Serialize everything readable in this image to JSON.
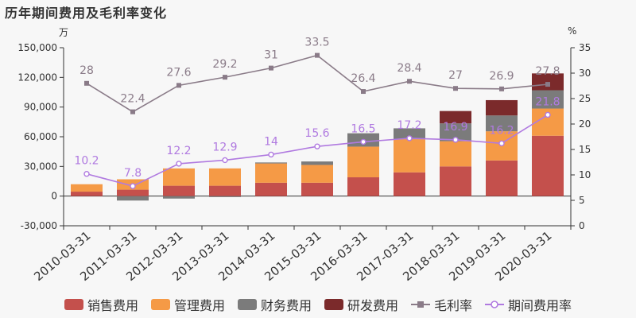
{
  "title": "历年期间费用及毛利率变化",
  "left_unit": "万",
  "right_unit": "%",
  "chart_data": {
    "type": "bar",
    "stacked": true,
    "categories": [
      "2010-03-31",
      "2011-03-31",
      "2012-03-31",
      "2013-03-31",
      "2014-03-31",
      "2015-03-31",
      "2016-03-31",
      "2017-03-31",
      "2018-03-31",
      "2019-03-31",
      "2020-03-31"
    ],
    "ylim": [
      -30000,
      150000
    ],
    "y_ticks": [
      "-30,000",
      "0",
      "30,000",
      "60,000",
      "90,000",
      "120,000",
      "150,000"
    ],
    "y2lim": [
      0,
      35
    ],
    "y2_ticks": [
      "0",
      "5",
      "10",
      "15",
      "20",
      "25",
      "30",
      "35"
    ],
    "series": [
      {
        "name": "销售费用",
        "color": "#c4504c",
        "values": [
          4500,
          6500,
          10500,
          10500,
          13500,
          13500,
          19000,
          24000,
          30000,
          36000,
          61000
        ]
      },
      {
        "name": "管理费用",
        "color": "#f59a46",
        "values": [
          7500,
          10500,
          17500,
          17500,
          19500,
          18000,
          31000,
          33500,
          25500,
          29500,
          27500
        ]
      },
      {
        "name": "财务费用",
        "color": "#7b7b7b",
        "values": [
          0,
          -4500,
          -2500,
          -1000,
          1000,
          3500,
          13500,
          11000,
          18000,
          16000,
          18500
        ]
      },
      {
        "name": "研发费用",
        "color": "#7b2a2b",
        "values": [
          0,
          0,
          0,
          0,
          0,
          0,
          0,
          0,
          12500,
          15500,
          17000
        ]
      }
    ],
    "lines": [
      {
        "name": "毛利率",
        "color": "#8a7b88",
        "marker": "square",
        "values": [
          28,
          22.4,
          27.6,
          29.2,
          31,
          33.5,
          26.4,
          28.4,
          27,
          26.9,
          27.8
        ],
        "labels": [
          "28",
          "22.4",
          "27.6",
          "29.2",
          "31",
          "33.5",
          "26.4",
          "28.4",
          "27",
          "26.9",
          "27.8"
        ]
      },
      {
        "name": "期间费用率",
        "color": "#b07ae0",
        "marker": "circle",
        "values": [
          10.2,
          7.8,
          12.2,
          12.9,
          14,
          15.6,
          16.5,
          17.2,
          16.9,
          16.2,
          21.8
        ],
        "labels": [
          "10.2",
          "7.8",
          "12.2",
          "12.9",
          "14",
          "15.6",
          "16.5",
          "17.2",
          "16.9",
          "16.2",
          "21.8"
        ]
      }
    ],
    "grid": false,
    "legend_position": "bottom"
  }
}
